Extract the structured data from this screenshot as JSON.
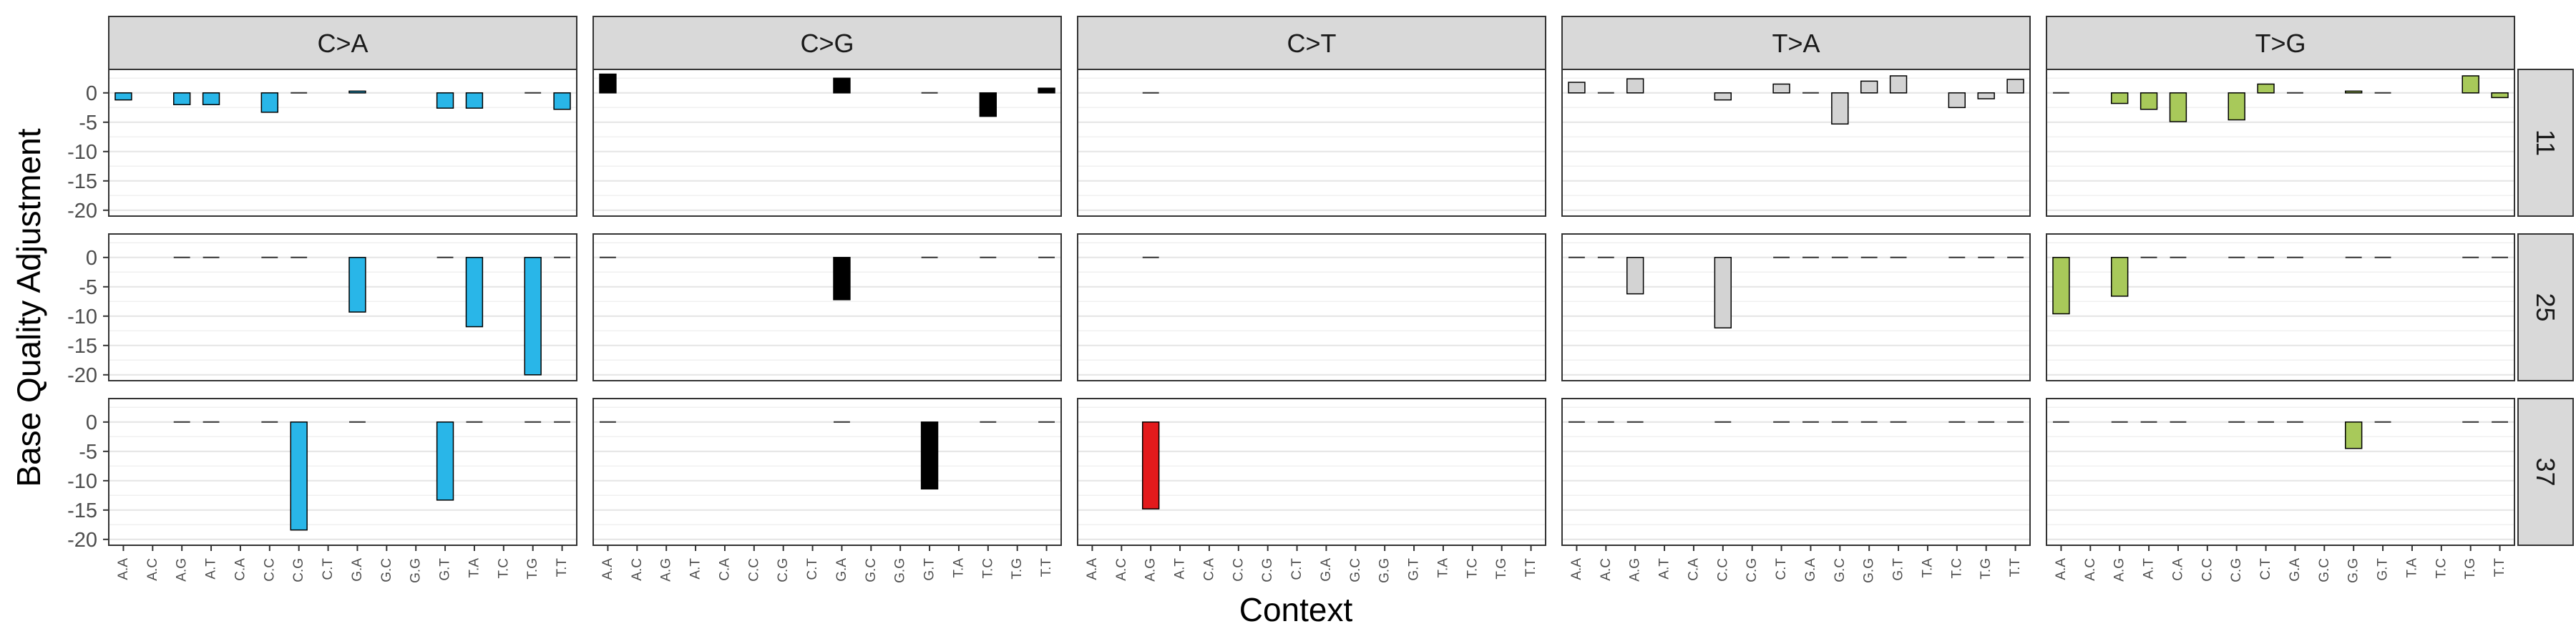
{
  "chart_data": {
    "type": "bar",
    "facet_type": "grid",
    "xlabel": "Context",
    "ylabel": "Base Quality Adjustment",
    "ylim": [
      -21,
      4
    ],
    "yticks": [
      0,
      -5,
      -10,
      -15,
      -20
    ],
    "ytick_labels": [
      "0",
      "-5",
      "-10",
      "-15",
      "-20"
    ],
    "grid": true,
    "legend": "none",
    "categories": [
      "A.A",
      "A.C",
      "A.G",
      "A.T",
      "C.A",
      "C.C",
      "C.G",
      "C.T",
      "G.A",
      "G.C",
      "G.G",
      "G.T",
      "T.A",
      "T.C",
      "T.G",
      "T.T"
    ],
    "columns": [
      {
        "label": "C>A",
        "color": "#29b6e8"
      },
      {
        "label": "C>G",
        "color": "#000000"
      },
      {
        "label": "C>T",
        "color": "#e31a1c"
      },
      {
        "label": "T>A",
        "color": "#d3d3d3"
      },
      {
        "label": "T>G",
        "color": "#a8c95a"
      }
    ],
    "rows": [
      {
        "label": "11"
      },
      {
        "label": "25"
      },
      {
        "label": "37"
      }
    ],
    "values": [
      [
        [
          -1.2,
          null,
          -2.0,
          -2.0,
          null,
          -3.3,
          0,
          null,
          0.3,
          null,
          null,
          -2.6,
          -2.6,
          null,
          0,
          -2.8
        ],
        [
          3.2,
          null,
          null,
          null,
          null,
          null,
          null,
          null,
          2.5,
          null,
          null,
          0,
          null,
          -4.0,
          null,
          0.8
        ],
        [
          null,
          null,
          0,
          null,
          null,
          null,
          null,
          null,
          null,
          null,
          null,
          null,
          null,
          null,
          null,
          null
        ],
        [
          1.8,
          0,
          2.4,
          null,
          null,
          -1.2,
          null,
          1.5,
          0,
          -5.3,
          2.0,
          2.9,
          null,
          -2.5,
          -1.0,
          2.3
        ],
        [
          0,
          null,
          -1.8,
          -2.8,
          -4.9,
          null,
          -4.6,
          1.5,
          0,
          null,
          0.3,
          0,
          null,
          null,
          2.9,
          -0.8
        ]
      ],
      [
        [
          null,
          null,
          0,
          0,
          null,
          0,
          0,
          null,
          -9.3,
          null,
          null,
          0,
          -11.8,
          null,
          -20.0,
          0
        ],
        [
          0,
          null,
          null,
          null,
          null,
          null,
          null,
          null,
          -7.2,
          null,
          null,
          0,
          null,
          0,
          null,
          0
        ],
        [
          null,
          null,
          0,
          null,
          null,
          null,
          null,
          null,
          null,
          null,
          null,
          null,
          null,
          null,
          null,
          null
        ],
        [
          0,
          0,
          -6.2,
          null,
          null,
          -12.0,
          null,
          0,
          0,
          0,
          0,
          0,
          null,
          0,
          0,
          0
        ],
        [
          -9.6,
          null,
          -6.6,
          0,
          0,
          null,
          0,
          0,
          0,
          null,
          0,
          0,
          null,
          null,
          0,
          0
        ]
      ],
      [
        [
          null,
          null,
          0,
          0,
          null,
          0,
          -18.4,
          null,
          0,
          null,
          null,
          -13.3,
          0,
          null,
          0,
          0
        ],
        [
          0,
          null,
          null,
          null,
          null,
          null,
          null,
          null,
          0,
          null,
          null,
          -11.4,
          null,
          0,
          null,
          0
        ],
        [
          null,
          null,
          -14.8,
          null,
          null,
          null,
          null,
          null,
          null,
          null,
          null,
          null,
          null,
          null,
          null,
          null
        ],
        [
          0,
          0,
          0,
          null,
          null,
          0,
          null,
          0,
          0,
          0,
          0,
          0,
          null,
          0,
          0,
          0
        ],
        [
          0,
          null,
          0,
          0,
          0,
          null,
          0,
          0,
          0,
          null,
          -4.5,
          0,
          null,
          null,
          0,
          0
        ]
      ]
    ]
  }
}
